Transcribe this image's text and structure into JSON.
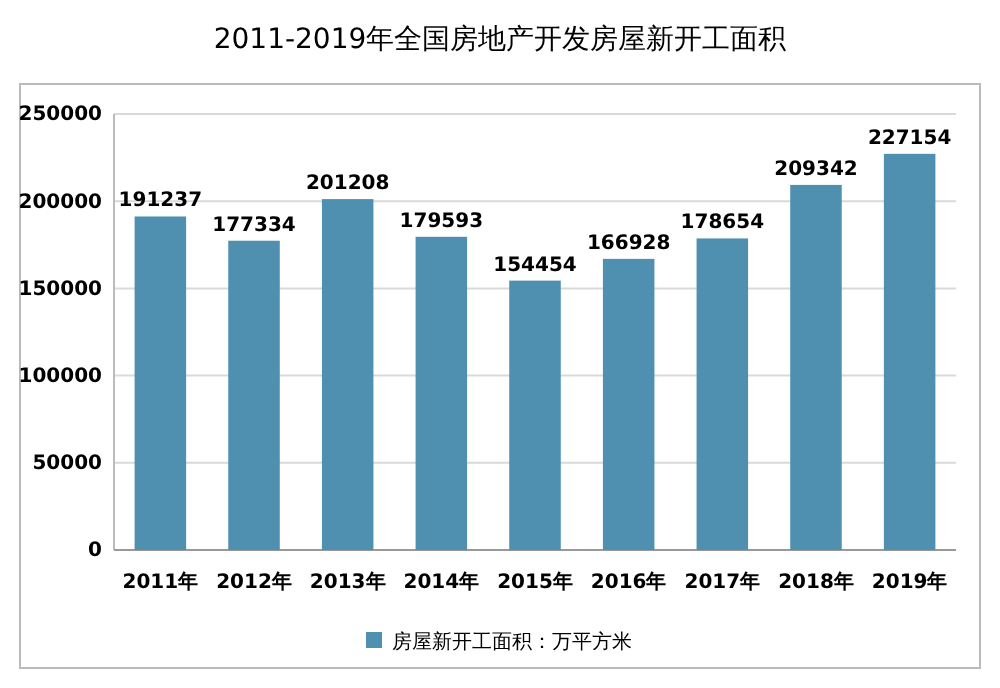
{
  "chart_data": {
    "type": "bar",
    "title": "2011-2019年全国房地产开发房屋新开工面积",
    "categories": [
      "2011年",
      "2012年",
      "2013年",
      "2014年",
      "2015年",
      "2016年",
      "2017年",
      "2018年",
      "2019年"
    ],
    "series": [
      {
        "name": "房屋新开工面积：万平方米",
        "color": "#4f8faf",
        "values": [
          191237,
          177334,
          201208,
          179593,
          154454,
          166928,
          178654,
          209342,
          227154
        ]
      }
    ],
    "ylim": [
      0,
      250000
    ],
    "yticks": [
      0,
      50000,
      100000,
      150000,
      200000,
      250000
    ],
    "grid": "y",
    "legend": "bottom",
    "data_labels": true
  }
}
